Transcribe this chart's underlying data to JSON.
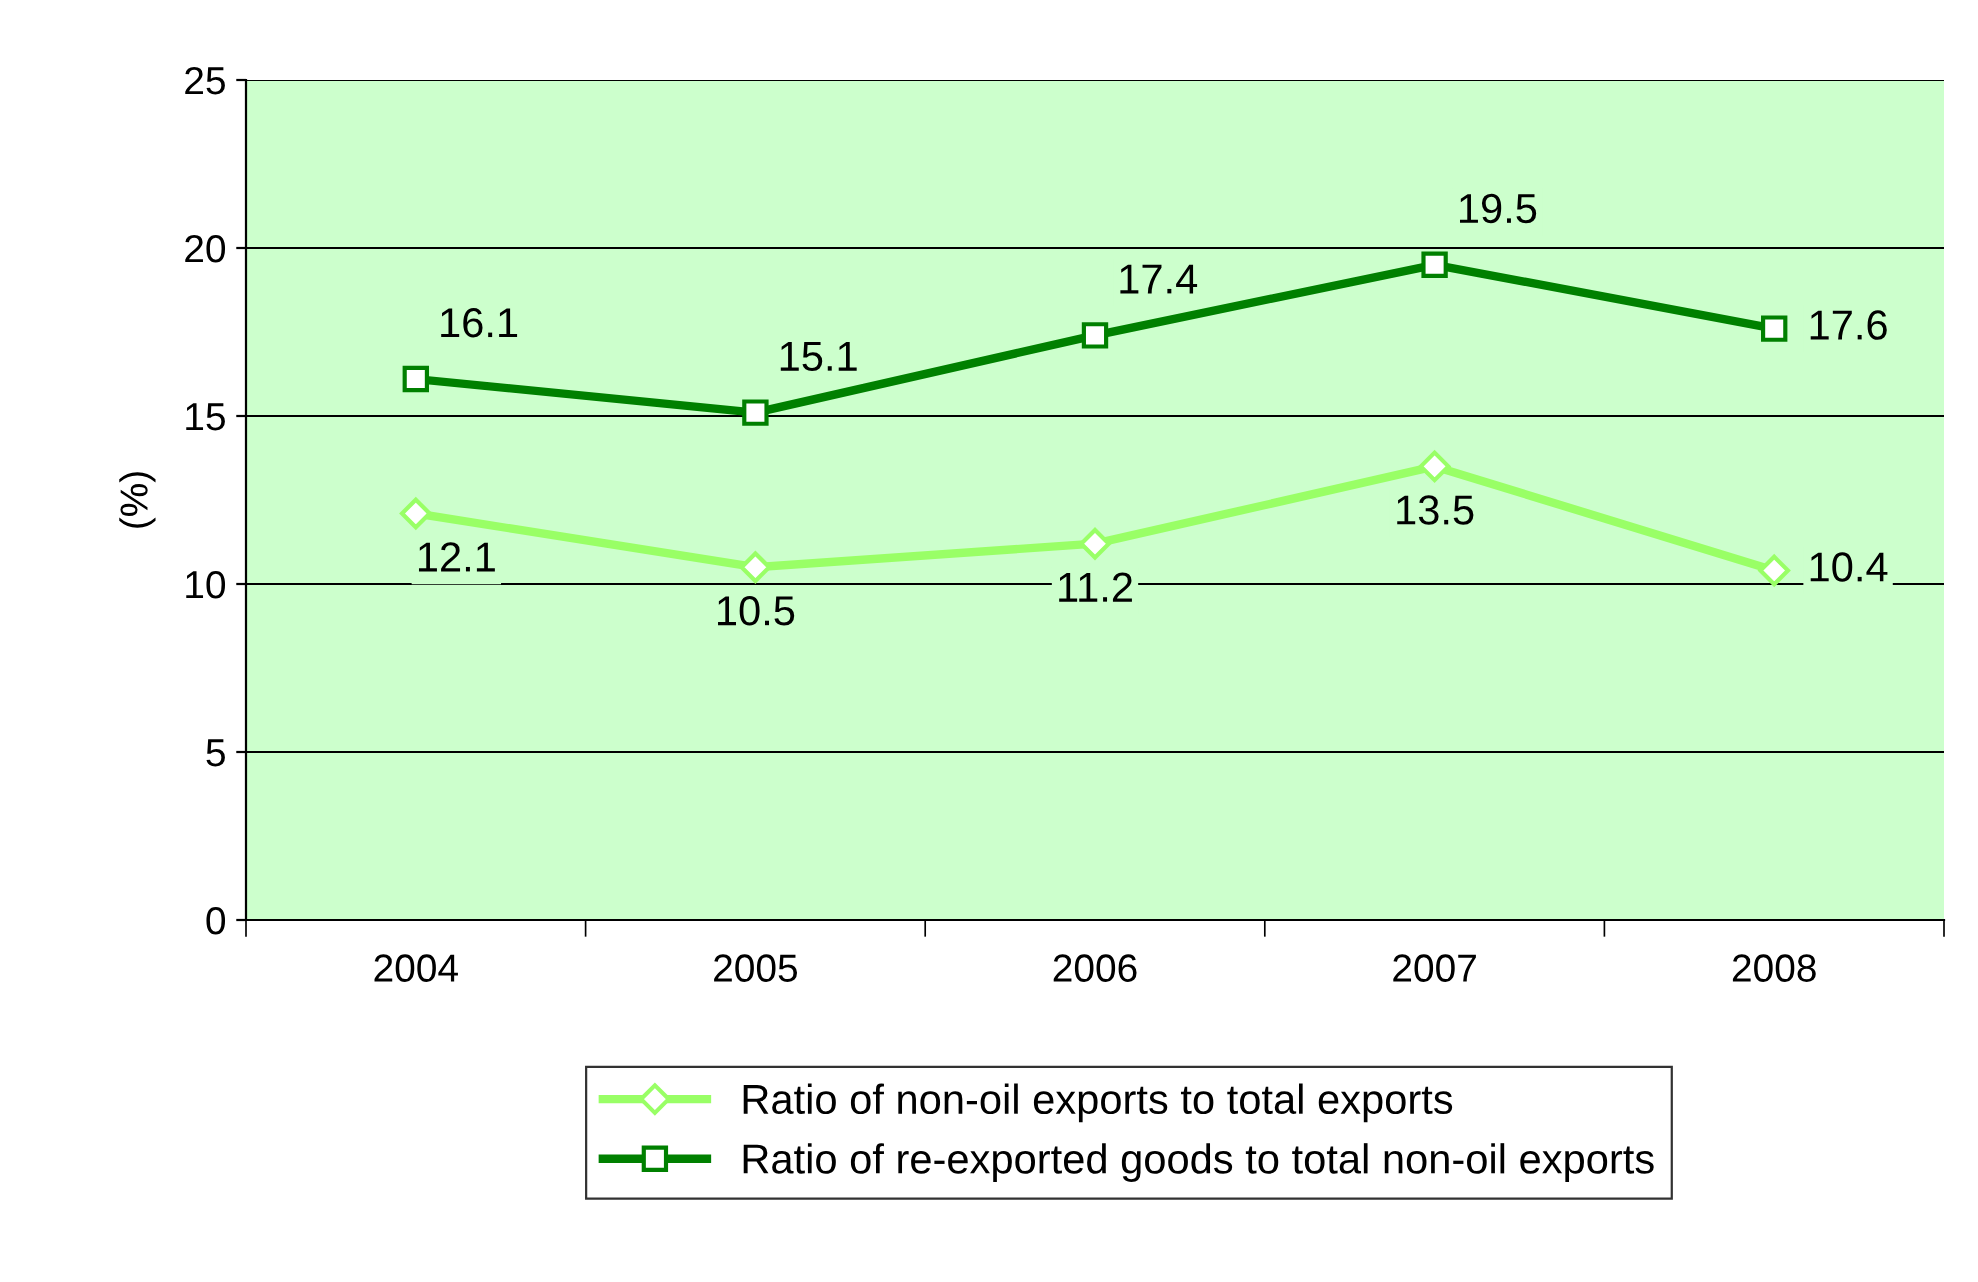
{
  "chart_data": {
    "type": "line",
    "categories": [
      "2004",
      "2005",
      "2006",
      "2007",
      "2008"
    ],
    "ylabel": "(%)",
    "ylim": [
      0,
      25
    ],
    "yticks": [
      0,
      5,
      10,
      15,
      20,
      25
    ],
    "grid": "y",
    "legend": "bottom",
    "data_labels": true,
    "series": [
      {
        "name": "Ratio of non-oil exports to total exports",
        "color": "#99ff66",
        "marker": "diamond",
        "values": [
          12.1,
          10.5,
          11.2,
          13.5,
          10.4
        ]
      },
      {
        "name": "Ratio of re-exported goods to total non-oil exports",
        "color": "#008000",
        "marker": "square",
        "values": [
          16.1,
          15.1,
          17.4,
          19.5,
          17.6
        ]
      }
    ]
  }
}
